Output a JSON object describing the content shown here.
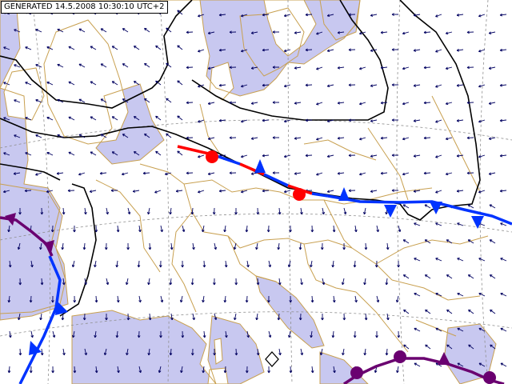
{
  "header": {
    "generated_label": "GENERATED 14.5.2008 10:30:10 UTC+2"
  },
  "colors": {
    "land": "#ffffff",
    "sea": "#c8c8f0",
    "coastline": "#c8a050",
    "isobar": "#000000",
    "wind_arrow": "#000060",
    "cold_front": "#0033ff",
    "warm_front": "#ff0000",
    "occluded_front": "#6a0070",
    "graticule": "#909090",
    "marker": "#000000"
  },
  "map": {
    "layers": [
      "sea-areas",
      "coastlines",
      "borders",
      "graticule",
      "isobars",
      "wind-arrows",
      "fronts",
      "marker"
    ],
    "front_types": [
      "stationary",
      "cold",
      "occluded"
    ],
    "marker_symbol": "diamond"
  }
}
